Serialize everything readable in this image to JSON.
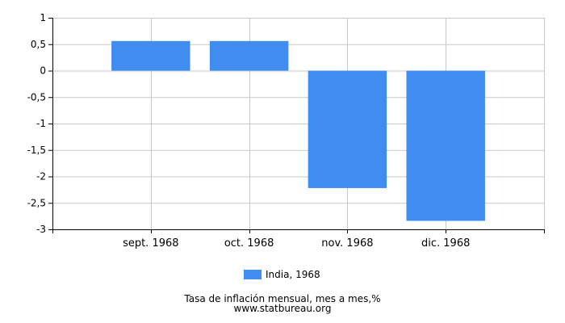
{
  "chart_data": {
    "type": "bar",
    "categories": [
      "sept. 1968",
      "oct. 1968",
      "nov. 1968",
      "dic. 1968"
    ],
    "series": [
      {
        "name": "India, 1968",
        "values": [
          0.56,
          0.56,
          -2.22,
          -2.84
        ],
        "color": "#418cf0"
      }
    ],
    "ylim": [
      -3,
      1
    ],
    "yticks": [
      1,
      0.5,
      0,
      -0.5,
      -1,
      -1.5,
      -2,
      -2.5,
      -3
    ],
    "ytick_labels": [
      "1",
      "0,5",
      "0",
      "-0,5",
      "-1",
      "-1,5",
      "-2",
      "-2,5",
      "-3"
    ],
    "grid": true,
    "legend_position": "bottom"
  },
  "caption": "Tasa de inflación mensual, mes a mes,%",
  "source": "www.statbureau.org"
}
